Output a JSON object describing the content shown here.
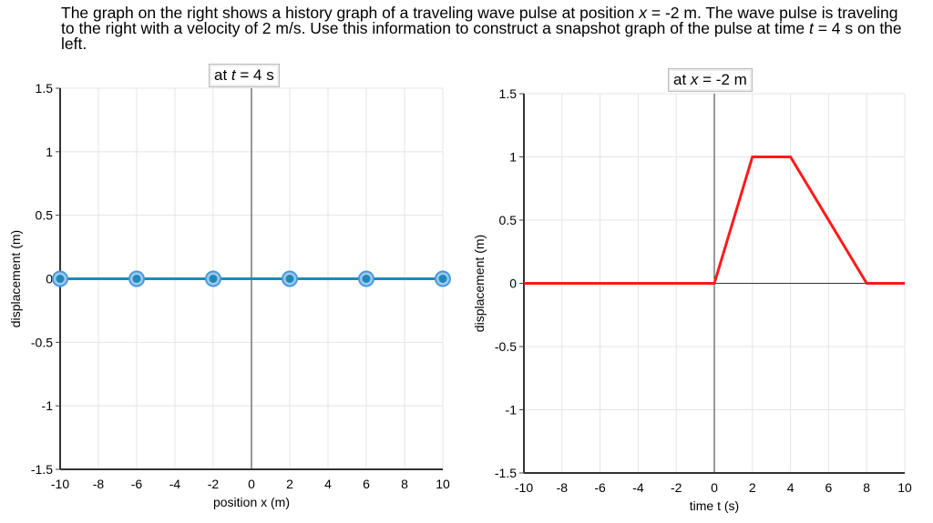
{
  "prompt": {
    "text_before_x": "The graph on the right shows a history graph of a traveling wave pulse at position ",
    "var_x": "x",
    "text_mid": " = -2 m. The wave pulse is traveling to the right with a velocity of 2 m/s. Use this information to construct a snapshot graph of the pulse at time ",
    "var_t": "t",
    "text_end": " = 4 s on the left."
  },
  "chart_data": [
    {
      "type": "line",
      "title": "at t = 4 s",
      "title_prefix": "at ",
      "title_var": "t",
      "title_suffix": " = 4 s",
      "xlabel": "position x (m)",
      "ylabel": "displacement (m)",
      "xlim": [
        -10,
        10
      ],
      "ylim": [
        -1.5,
        1.5
      ],
      "xticks": [
        "-10",
        "-8",
        "-6",
        "-4",
        "-2",
        "0",
        "2",
        "4",
        "6",
        "8",
        "10"
      ],
      "yticks": [
        "1.5",
        "1",
        "0.5",
        "0",
        "-0.5",
        "-1",
        "-1.5"
      ],
      "grid": true,
      "color": "#1f88b8",
      "interactive_points": true,
      "x": [
        -10,
        -6,
        -2,
        2,
        6,
        10
      ],
      "y": [
        0,
        0,
        0,
        0,
        0,
        0
      ]
    },
    {
      "type": "line",
      "title": "at x = -2 m",
      "title_prefix": "at ",
      "title_var": "x",
      "title_suffix": " = -2 m",
      "xlabel": "time t (s)",
      "ylabel": "displacement (m)",
      "xlim": [
        -10,
        10
      ],
      "ylim": [
        -1.5,
        1.5
      ],
      "xticks": [
        "-10",
        "-8",
        "-6",
        "-4",
        "-2",
        "0",
        "2",
        "4",
        "6",
        "8",
        "10"
      ],
      "yticks": [
        "1.5",
        "1",
        "0.5",
        "0",
        "-0.5",
        "-1",
        "-1.5"
      ],
      "grid": true,
      "color": "#ff1a1a",
      "interactive_points": false,
      "x": [
        -10,
        0,
        2,
        4,
        8,
        10
      ],
      "y": [
        0,
        0,
        1,
        1,
        0,
        0
      ]
    }
  ]
}
